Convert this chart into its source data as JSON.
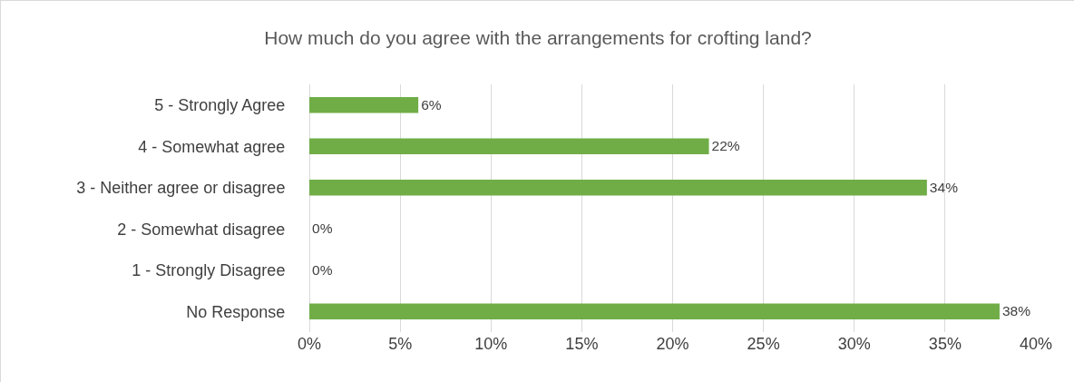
{
  "chart_data": {
    "type": "bar",
    "orientation": "horizontal",
    "title": "How much do you agree with the arrangements for crofting land?",
    "categories": [
      "5 - Strongly Agree",
      "4 - Somewhat agree",
      "3 - Neither agree or disagree",
      "2 - Somewhat disagree",
      "1 - Strongly Disagree",
      "No Response"
    ],
    "values": [
      6,
      22,
      34,
      0,
      0,
      38
    ],
    "value_labels": [
      "6%",
      "22%",
      "34%",
      "0%",
      "0%",
      "38%"
    ],
    "color": "#70ad47",
    "xlim": [
      0,
      40
    ],
    "xticks": [
      {
        "value": 0,
        "label": "0%"
      },
      {
        "value": 5,
        "label": "5%"
      },
      {
        "value": 10,
        "label": "10%"
      },
      {
        "value": 15,
        "label": "15%"
      },
      {
        "value": 20,
        "label": "20%"
      },
      {
        "value": 25,
        "label": "25%"
      },
      {
        "value": 30,
        "label": "30%"
      },
      {
        "value": 35,
        "label": "35%"
      },
      {
        "value": 40,
        "label": "40%"
      }
    ],
    "grid": "x"
  }
}
